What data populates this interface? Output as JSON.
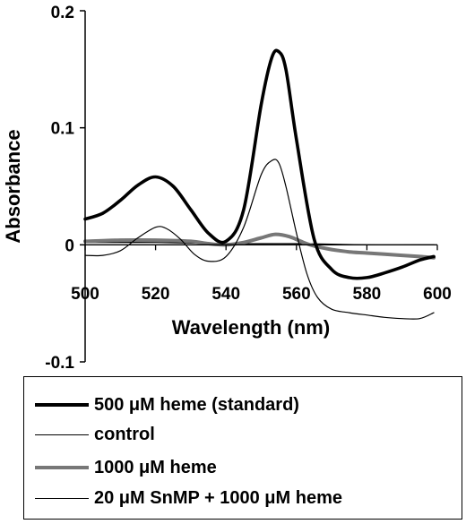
{
  "chart_data": {
    "type": "line",
    "title": "",
    "xlabel": "Wavelength (nm)",
    "ylabel": "Absorbance",
    "xlim": [
      500,
      600
    ],
    "ylim": [
      -0.1,
      0.2
    ],
    "x_ticks": [
      "500",
      "520",
      "540",
      "560",
      "580",
      "600"
    ],
    "y_ticks": [
      "0.2",
      "0.1",
      "0",
      "-0.1"
    ],
    "grid": false,
    "legend_position": "bottom",
    "series": [
      {
        "name": "500 μM heme (standard)",
        "color": "#000000",
        "style": "thick",
        "x": [
          500,
          505,
          510,
          515,
          520,
          525,
          530,
          535,
          540,
          545,
          550,
          553,
          555,
          557,
          560,
          565,
          570,
          575,
          580,
          585,
          590,
          595,
          599
        ],
        "y": [
          0.022,
          0.027,
          0.038,
          0.051,
          0.058,
          0.05,
          0.03,
          0.01,
          0.003,
          0.03,
          0.12,
          0.16,
          0.165,
          0.15,
          0.09,
          0.005,
          -0.021,
          -0.028,
          -0.028,
          -0.024,
          -0.019,
          -0.013,
          -0.01
        ]
      },
      {
        "name": "control",
        "color": "#000000",
        "style": "thin",
        "x": [
          500,
          520,
          540,
          560,
          580,
          599
        ],
        "y": [
          0.002,
          0.002,
          0.001,
          0.001,
          0.0,
          0.0
        ]
      },
      {
        "name": "1000 μM heme",
        "color": "#777777",
        "style": "gray",
        "x": [
          500,
          510,
          520,
          530,
          535,
          540,
          545,
          550,
          554,
          558,
          562,
          565,
          570,
          575,
          580,
          585,
          590,
          595,
          599
        ],
        "y": [
          0.003,
          0.004,
          0.004,
          0.003,
          0.001,
          0.0,
          0.002,
          0.006,
          0.009,
          0.007,
          0.002,
          -0.001,
          -0.004,
          -0.006,
          -0.007,
          -0.008,
          -0.009,
          -0.01,
          -0.011
        ]
      },
      {
        "name": "20 μM SnMP + 1000 μM heme",
        "color": "#000000",
        "style": "thin",
        "x": [
          500,
          505,
          510,
          515,
          520,
          523,
          527,
          531,
          535,
          540,
          545,
          550,
          553,
          555,
          557,
          560,
          563,
          566,
          570,
          575,
          580,
          585,
          590,
          595,
          599
        ],
        "y": [
          -0.009,
          -0.009,
          -0.005,
          0.006,
          0.015,
          0.014,
          0.005,
          -0.008,
          -0.014,
          -0.01,
          0.015,
          0.06,
          0.072,
          0.07,
          0.05,
          0.01,
          -0.025,
          -0.045,
          -0.055,
          -0.058,
          -0.06,
          -0.062,
          -0.063,
          -0.063,
          -0.058
        ]
      }
    ]
  }
}
